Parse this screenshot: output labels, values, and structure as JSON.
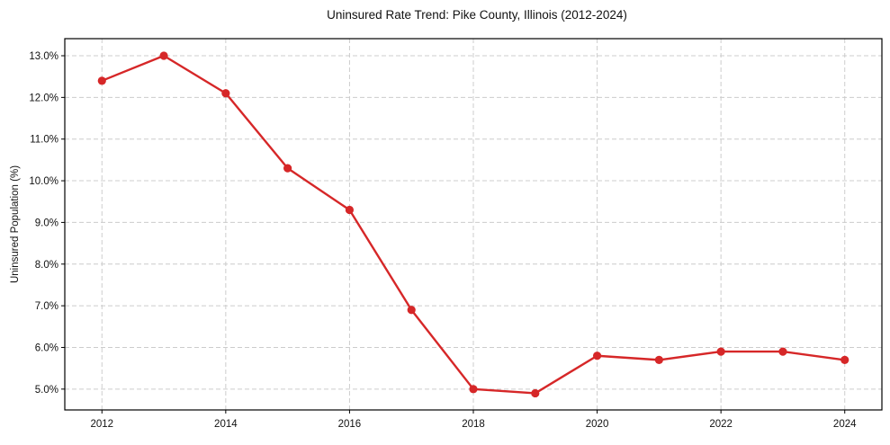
{
  "chart_data": {
    "type": "line",
    "title": "Uninsured Rate Trend: Pike County, Illinois (2012-2024)",
    "xlabel": "",
    "ylabel": "Uninsured Population (%)",
    "x": [
      2012,
      2013,
      2014,
      2015,
      2016,
      2017,
      2018,
      2019,
      2020,
      2021,
      2022,
      2023,
      2024
    ],
    "series": [
      {
        "name": "Uninsured Rate",
        "values": [
          12.4,
          13.0,
          12.1,
          10.3,
          9.3,
          6.9,
          5.0,
          4.9,
          5.8,
          5.7,
          5.9,
          5.9,
          5.7
        ],
        "color": "#d62728",
        "marker": "circle"
      }
    ],
    "xticks": [
      2012,
      2014,
      2016,
      2018,
      2020,
      2022,
      2024
    ],
    "xtick_labels": [
      "2012",
      "2014",
      "2016",
      "2018",
      "2020",
      "2022",
      "2024"
    ],
    "yticks": [
      5.0,
      6.0,
      7.0,
      8.0,
      9.0,
      10.0,
      11.0,
      12.0,
      13.0
    ],
    "ytick_labels": [
      "5.0%",
      "6.0%",
      "7.0%",
      "8.0%",
      "9.0%",
      "10.0%",
      "11.0%",
      "12.0%",
      "13.0%"
    ],
    "xlim": [
      2011.4,
      2024.6
    ],
    "ylim": [
      4.5,
      13.41
    ],
    "grid": true,
    "grid_style": "dashed",
    "legend": null
  },
  "colors": {
    "line": "#d62728",
    "grid": "#cccccc",
    "axis": "#000000",
    "background": "#ffffff"
  }
}
